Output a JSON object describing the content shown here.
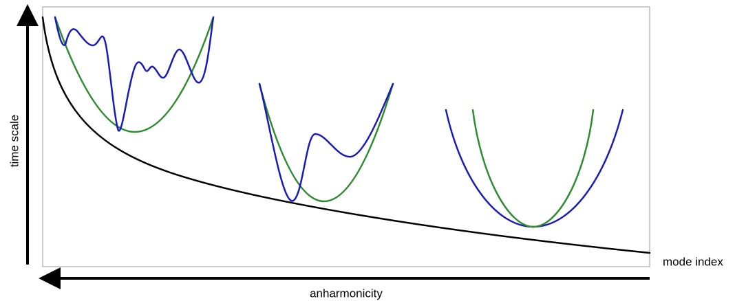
{
  "labels": {
    "vertical_axis": "time scale",
    "horizontal_axis": "mode index",
    "bottom_arrow": "anharmonicity"
  }
}
